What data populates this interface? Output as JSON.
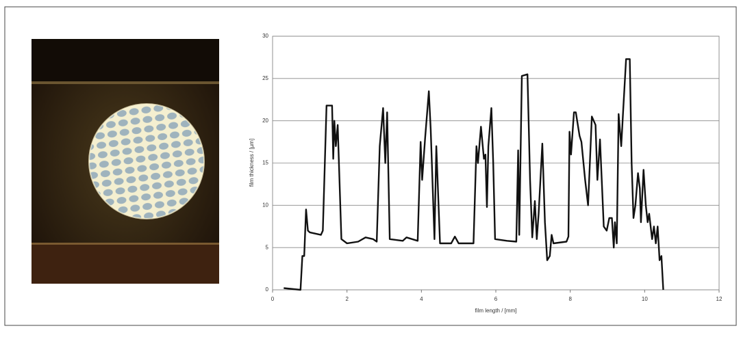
{
  "chart_data": {
    "type": "line",
    "xlabel": "film length / [mm]",
    "ylabel": "film thickness / [µm]",
    "xlim": [
      0,
      12
    ],
    "xticks": [
      0,
      2,
      4,
      6,
      8,
      10,
      12
    ],
    "ylim": [
      0,
      30
    ],
    "yticks": [
      0,
      5,
      10,
      15,
      20,
      25,
      30
    ],
    "grid": true,
    "color": "#111111",
    "x": [
      0.3,
      0.75,
      0.8,
      0.85,
      0.9,
      0.95,
      1.0,
      1.3,
      1.35,
      1.45,
      1.6,
      1.63,
      1.66,
      1.7,
      1.75,
      1.85,
      2.0,
      2.3,
      2.5,
      2.7,
      2.8,
      2.88,
      2.97,
      3.03,
      3.08,
      3.15,
      3.5,
      3.6,
      3.9,
      3.98,
      4.02,
      4.1,
      4.2,
      4.25,
      4.35,
      4.4,
      4.5,
      4.8,
      4.9,
      5.0,
      5.4,
      5.48,
      5.52,
      5.6,
      5.68,
      5.72,
      5.76,
      5.8,
      5.88,
      5.93,
      5.98,
      6.3,
      6.55,
      6.6,
      6.63,
      6.7,
      6.85,
      6.92,
      6.98,
      7.05,
      7.1,
      7.15,
      7.25,
      7.32,
      7.38,
      7.45,
      7.5,
      7.55,
      7.9,
      7.95,
      7.98,
      8.02,
      8.1,
      8.15,
      8.25,
      8.3,
      8.4,
      8.48,
      8.58,
      8.68,
      8.73,
      8.8,
      8.9,
      8.98,
      9.05,
      9.12,
      9.17,
      9.2,
      9.25,
      9.3,
      9.37,
      9.42,
      9.5,
      9.6,
      9.65,
      9.7,
      9.75,
      9.82,
      9.87,
      9.9,
      9.97,
      10.03,
      10.08,
      10.12,
      10.2,
      10.25,
      10.3,
      10.35,
      10.4,
      10.45,
      10.5
    ],
    "values": [
      0.2,
      0,
      4,
      4,
      9.5,
      7,
      6.8,
      6.5,
      7,
      21.8,
      21.8,
      15.5,
      20,
      17,
      19.5,
      6,
      5.5,
      5.7,
      6.2,
      6,
      5.7,
      17,
      21.5,
      15,
      21,
      6,
      5.8,
      6.2,
      5.8,
      17.5,
      13,
      18,
      23.5,
      19,
      6,
      17,
      5.5,
      5.5,
      6.3,
      5.5,
      5.5,
      17,
      15,
      19.3,
      15.5,
      16,
      9.8,
      17,
      21.5,
      15,
      6,
      5.8,
      5.7,
      16.5,
      6.5,
      25.3,
      25.5,
      13,
      6.2,
      10.5,
      6,
      9,
      17.3,
      8,
      3.5,
      4,
      6.5,
      5.5,
      5.7,
      6.3,
      18.7,
      16,
      21,
      21,
      18.2,
      17.5,
      13,
      10,
      20.5,
      19.5,
      13,
      17.8,
      7.5,
      7,
      8.5,
      8.5,
      5,
      8,
      5.5,
      20.8,
      17,
      21,
      27.3,
      27.3,
      15,
      8.5,
      10,
      13.8,
      12,
      8,
      14.2,
      10,
      8,
      9,
      6,
      7.5,
      5.5,
      7.5,
      3.5,
      4,
      0
    ]
  }
}
